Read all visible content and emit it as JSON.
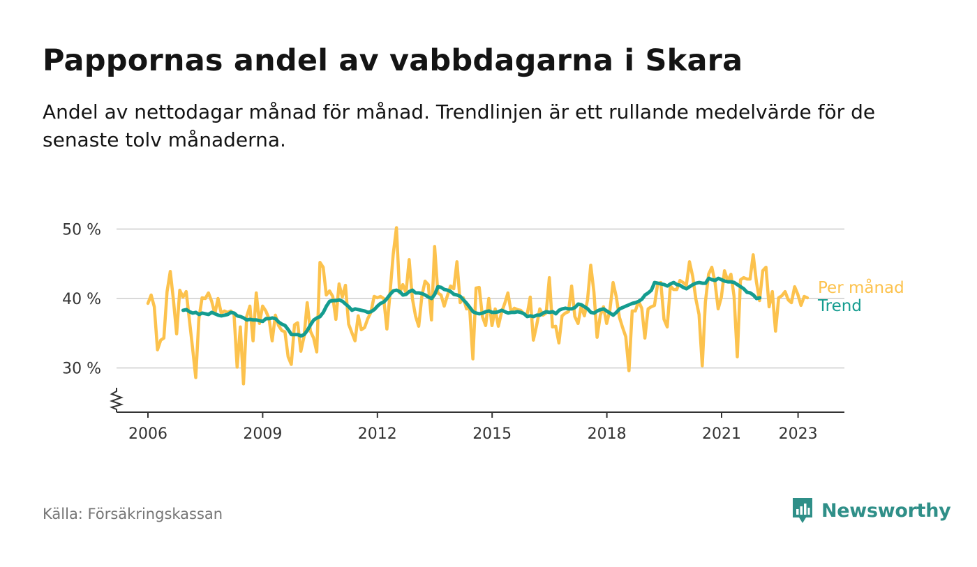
{
  "header": {
    "title": "Pappornas andel av vabbdagarna i Skara",
    "subtitle": "Andel av nettodagar månad för månad. Trendlinjen är ett rullande medelvärde för de senaste tolv månaderna."
  },
  "footer": {
    "source": "Källa: Försäkringskassan",
    "brand": "Newsworthy"
  },
  "colors": {
    "monthly": "#fcc24d",
    "trend": "#149c8f",
    "grid": "#d9d9d9",
    "axis": "#333333",
    "brand": "#2f8f88"
  },
  "chart_data": {
    "type": "line",
    "x_unit": "year (decimal)",
    "y_unit": "percent",
    "x_ticks": [
      2006,
      2009,
      2012,
      2015,
      2018,
      2021,
      2023
    ],
    "x_tick_labels": [
      "2006",
      "2009",
      "2012",
      "2015",
      "2018",
      "2021",
      "2023"
    ],
    "y_ticks": [
      30,
      40,
      50
    ],
    "y_tick_labels": [
      "30 %",
      "40 %",
      "50 %"
    ],
    "xlim": [
      2005.05,
      2024.2
    ],
    "ylim": [
      23.5,
      50
    ],
    "y_axis_break": true,
    "grid": "horizontal",
    "legend_placement": "right of line ends",
    "series": [
      {
        "name": "Per månad",
        "color": "#fcc24d",
        "start_year": 2006.0,
        "step": 0.0833,
        "values": [
          39.3,
          40.5,
          38.8,
          32.6,
          34.0,
          34.3,
          41.0,
          43.9,
          39.8,
          34.9,
          41.2,
          40.2,
          41.0,
          37.0,
          32.9,
          28.6,
          37.1,
          40.1,
          40.0,
          40.8,
          39.6,
          37.8,
          40.0,
          37.9,
          38.2,
          38.0,
          38.2,
          37.8,
          30.1,
          35.9,
          27.7,
          37.4,
          38.9,
          33.9,
          40.8,
          36.4,
          38.9,
          38.2,
          37.1,
          33.9,
          37.6,
          36.1,
          35.4,
          35.2,
          31.6,
          30.5,
          36.2,
          36.5,
          32.4,
          34.5,
          39.4,
          35.3,
          34.3,
          32.3,
          45.2,
          44.5,
          40.5,
          41.1,
          40.3,
          37.0,
          42.1,
          40.2,
          41.9,
          36.3,
          35.1,
          33.9,
          37.5,
          35.5,
          35.8,
          37.1,
          38.0,
          40.3,
          40.1,
          40.3,
          40.0,
          35.6,
          40.8,
          46.4,
          50.2,
          40.8,
          42.0,
          40.8,
          45.6,
          40.0,
          37.5,
          36.0,
          40.4,
          42.5,
          42.0,
          36.9,
          47.5,
          40.8,
          40.5,
          38.9,
          40.4,
          41.8,
          41.4,
          45.3,
          39.4,
          40.1,
          38.5,
          38.6,
          31.3,
          41.5,
          41.6,
          37.4,
          36.1,
          40.0,
          36.1,
          38.5,
          36.0,
          38.0,
          39.3,
          40.8,
          38.0,
          38.6,
          38.4,
          38.3,
          37.8,
          37.6,
          40.2,
          34.0,
          36.1,
          38.5,
          37.6,
          37.9,
          43.0,
          35.9,
          36.0,
          33.6,
          37.5,
          37.9,
          38.1,
          41.8,
          37.4,
          36.4,
          38.9,
          37.5,
          39.8,
          44.8,
          40.9,
          34.4,
          37.6,
          38.8,
          36.4,
          38.3,
          42.3,
          40.3,
          37.3,
          35.8,
          34.5,
          29.6,
          38.2,
          38.2,
          39.6,
          38.6,
          34.3,
          38.5,
          38.8,
          39.0,
          42.1,
          42.3,
          37.0,
          35.9,
          41.8,
          41.3,
          41.3,
          42.6,
          42.3,
          41.9,
          45.3,
          43.2,
          39.9,
          37.7,
          30.3,
          39.5,
          43.5,
          44.5,
          42.4,
          38.5,
          40.2,
          44.0,
          42.5,
          43.5,
          40.3,
          31.6,
          42.7,
          43.0,
          42.8,
          42.8,
          46.3,
          42.4,
          39.7,
          44.0,
          44.5,
          38.8,
          41.0,
          35.3,
          40.1,
          40.4,
          41.0,
          39.8,
          39.4,
          41.7,
          40.6,
          39.0,
          40.3,
          40.1
        ]
      },
      {
        "name": "Trend",
        "color": "#149c8f",
        "start_year": 2006.92,
        "step": 0.0833,
        "values": [
          38.3,
          38.4,
          38.1,
          37.9,
          38.0,
          37.7,
          37.9,
          37.8,
          37.7,
          38.0,
          37.8,
          37.6,
          37.5,
          37.6,
          37.7,
          38.0,
          37.9,
          37.5,
          37.4,
          37.2,
          36.9,
          37.0,
          36.9,
          36.9,
          36.8,
          36.7,
          37.1,
          37.1,
          37.2,
          37.1,
          36.6,
          36.3,
          36.1,
          35.5,
          34.8,
          34.8,
          34.8,
          34.6,
          34.8,
          35.4,
          36.2,
          36.9,
          37.2,
          37.4,
          38.0,
          38.9,
          39.6,
          39.7,
          39.7,
          39.8,
          39.6,
          39.2,
          38.8,
          38.3,
          38.5,
          38.4,
          38.3,
          38.2,
          38.0,
          38.1,
          38.4,
          38.9,
          39.3,
          39.5,
          40.0,
          40.6,
          41.1,
          41.2,
          41.0,
          40.5,
          40.6,
          41.0,
          41.2,
          40.8,
          40.8,
          40.7,
          40.5,
          40.2,
          40.0,
          40.6,
          41.7,
          41.6,
          41.3,
          41.2,
          41.0,
          40.6,
          40.5,
          40.3,
          39.8,
          39.3,
          38.7,
          38.1,
          37.9,
          37.8,
          37.9,
          38.1,
          38.2,
          38.0,
          38.0,
          38.1,
          38.3,
          38.1,
          37.9,
          38.0,
          38.0,
          38.1,
          38.0,
          37.8,
          37.4,
          37.5,
          37.4,
          37.6,
          37.6,
          37.9,
          38.1,
          38.0,
          38.1,
          37.8,
          38.3,
          38.5,
          38.6,
          38.5,
          38.5,
          38.7,
          39.2,
          39.1,
          38.8,
          38.5,
          38.0,
          37.9,
          38.2,
          38.4,
          38.5,
          38.2,
          37.9,
          37.6,
          38.0,
          38.5,
          38.7,
          38.9,
          39.1,
          39.3,
          39.4,
          39.6,
          39.9,
          40.5,
          40.8,
          41.2,
          42.3,
          42.2,
          42.1,
          42.0,
          41.8,
          42.1,
          42.3,
          42.0,
          41.9,
          41.6,
          41.4,
          41.7,
          42.0,
          42.2,
          42.3,
          42.2,
          42.2,
          42.9,
          42.7,
          42.6,
          42.9,
          42.7,
          42.5,
          42.4,
          42.4,
          42.3,
          42.0,
          41.7,
          41.4,
          40.9,
          40.8,
          40.5,
          40.0,
          40.1
        ]
      }
    ]
  }
}
